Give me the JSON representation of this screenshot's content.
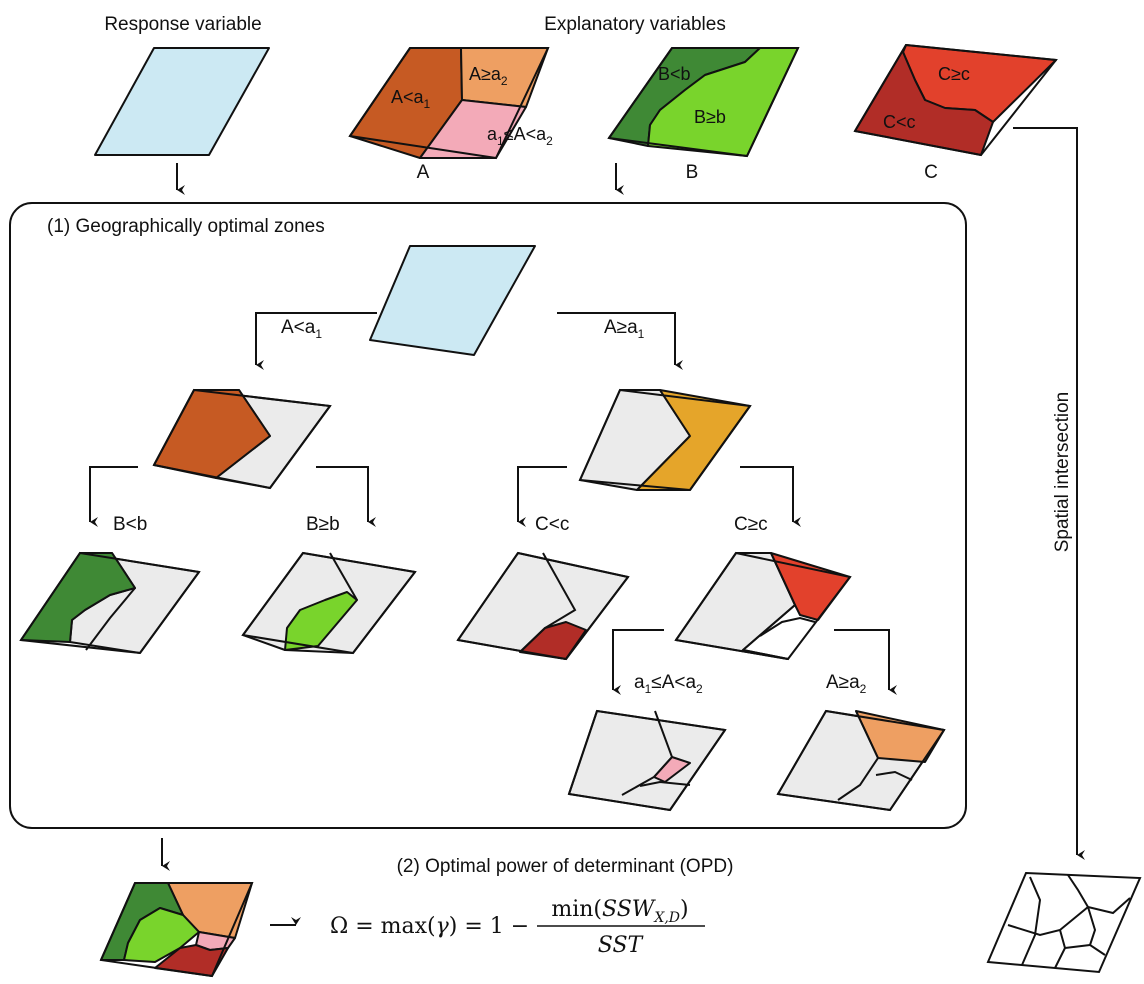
{
  "headings": {
    "response": "Response variable",
    "explanatory": "Explanatory variables",
    "spatial": "Spatial intersection"
  },
  "maps": {
    "A": {
      "name": "A",
      "region1": "A<a",
      "region1_sub": "1",
      "region2": "A≥a",
      "region2_sub": "2",
      "region3_a": "a",
      "region3_sub1": "1",
      "region3_mid": "≤A<a",
      "region3_sub2": "2"
    },
    "B": {
      "name": "B",
      "region1": "B<b",
      "region2": "B≥b"
    },
    "C": {
      "name": "C",
      "region1": "C≥c",
      "region2": "C<c"
    }
  },
  "section1": {
    "title": "(1) Geographically optimal zones"
  },
  "splits": {
    "a_lt_a1": {
      "main": "A<a",
      "sub": "1"
    },
    "a_ge_a1": {
      "main": "A≥a",
      "sub": "1"
    },
    "b_lt_b": "B<b",
    "b_ge_b": "B≥b",
    "c_lt_c": "C<c",
    "c_ge_c": "C≥c",
    "a_mid": {
      "a": "a",
      "sub1": "1",
      "mid": "≤A<a",
      "sub2": "2"
    },
    "a_ge_a2": {
      "main": "A≥a",
      "sub": "2"
    }
  },
  "section2": {
    "title": "(2) Optimal power of determinant (OPD)",
    "formula": "Ω = max(γ) = 1 − min(SSW_{X,D}) / SST"
  },
  "colors": {
    "response": "#cce9f3",
    "a_low": "#c65a23",
    "a_high": "#ee9f62",
    "a_mid": "#f3aab8",
    "a_ge_a1": "#e5a52a",
    "b_low": "#3f8935",
    "b_high": "#79d42c",
    "c_high": "#e2412c",
    "c_low": "#b12d27",
    "grey": "#ebebeb"
  }
}
